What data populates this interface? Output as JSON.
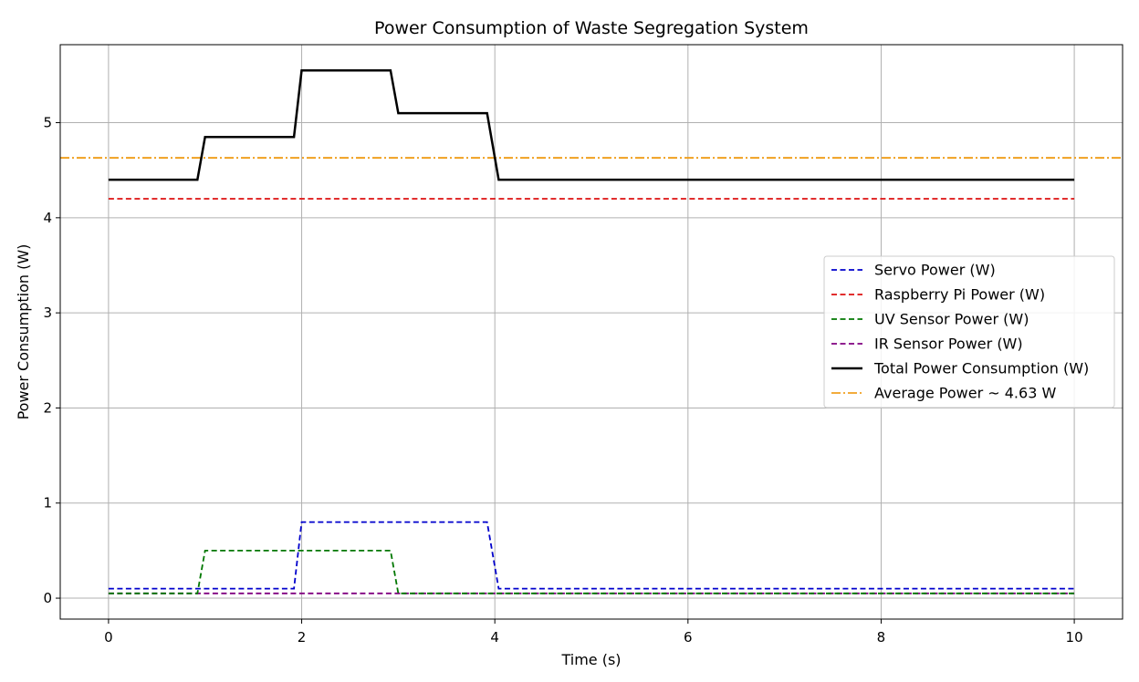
{
  "chart_data": {
    "type": "line",
    "title": "Power Consumption of Waste Segregation System",
    "xlabel": "Time (s)",
    "ylabel": "Power Consumption (W)",
    "xlim": [
      -0.5,
      10.5
    ],
    "ylim": [
      -0.22,
      5.82
    ],
    "xticks": [
      0,
      2,
      4,
      6,
      8,
      10
    ],
    "yticks": [
      0,
      1,
      2,
      3,
      4,
      5
    ],
    "grid": true,
    "legend_position": "center-right",
    "series": [
      {
        "name": "Servo Power (W)",
        "color": "#0000cc",
        "style": "dashed",
        "x": [
          0,
          1.92,
          2.0,
          3.92,
          4.04,
          10
        ],
        "y": [
          0.1,
          0.1,
          0.8,
          0.8,
          0.1,
          0.1
        ]
      },
      {
        "name": "Raspberry Pi Power (W)",
        "color": "#dd1111",
        "style": "dashed",
        "x": [
          0,
          10
        ],
        "y": [
          4.2,
          4.2
        ]
      },
      {
        "name": "UV Sensor Power (W)",
        "color": "#007700",
        "style": "dashed",
        "x": [
          0,
          0.92,
          1.0,
          2.92,
          3.0,
          10
        ],
        "y": [
          0.05,
          0.05,
          0.5,
          0.5,
          0.05,
          0.05
        ]
      },
      {
        "name": "IR Sensor Power (W)",
        "color": "#800080",
        "style": "dashed",
        "x": [
          0,
          10
        ],
        "y": [
          0.05,
          0.05
        ]
      },
      {
        "name": "Total Power Consumption (W)",
        "color": "#000000",
        "style": "solid",
        "x": [
          0,
          0.92,
          1.0,
          1.92,
          2.0,
          2.92,
          3.0,
          3.92,
          4.04,
          10
        ],
        "y": [
          4.4,
          4.4,
          4.85,
          4.85,
          5.55,
          5.55,
          5.1,
          5.1,
          4.4,
          4.4
        ]
      }
    ],
    "reference_lines": [
      {
        "name": "Average Power ~ 4.63 W",
        "color": "#f0a020",
        "style": "dashdot",
        "y": 4.63
      }
    ]
  }
}
